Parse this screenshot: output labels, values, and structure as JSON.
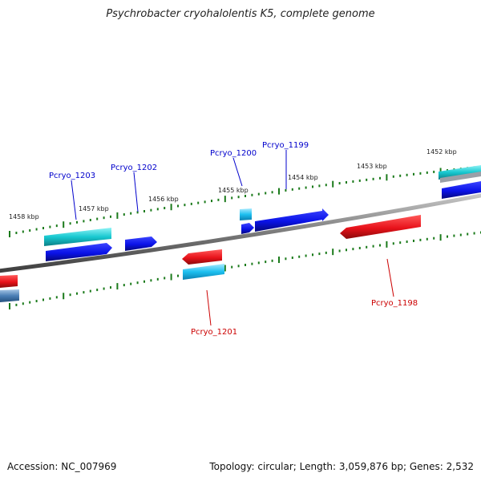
{
  "header": {
    "title": "Psychrobacter cryohalolentis K5, complete genome"
  },
  "footer": {
    "accession": "Accession: NC_007969",
    "stats": "Topology: circular; Length: 3,059,876 bp; Genes: 2,532"
  },
  "colors": {
    "forward_gene": "#0a12e8",
    "reverse_gene": "#e8121a",
    "cyan_feature": "#18c8d0",
    "steel_feature": "#4a7fb5",
    "backbone": "#7a7a7a",
    "tick": "#1a7a1a",
    "forward_label": "#0000cc",
    "reverse_label": "#cc0000"
  },
  "scale": {
    "ticks": [
      "1452 kbp",
      "1453 kbp",
      "1454 kbp",
      "1455 kbp",
      "1456 kbp",
      "1457 kbp",
      "1458 kbp"
    ]
  },
  "genes": [
    {
      "name": "Pcryo_1199",
      "strand": "forward"
    },
    {
      "name": "Pcryo_1200",
      "strand": "forward"
    },
    {
      "name": "Pcryo_1202",
      "strand": "forward"
    },
    {
      "name": "Pcryo_1203",
      "strand": "forward"
    },
    {
      "name": "Pcryo_1198",
      "strand": "reverse"
    },
    {
      "name": "Pcryo_1201",
      "strand": "reverse"
    }
  ]
}
